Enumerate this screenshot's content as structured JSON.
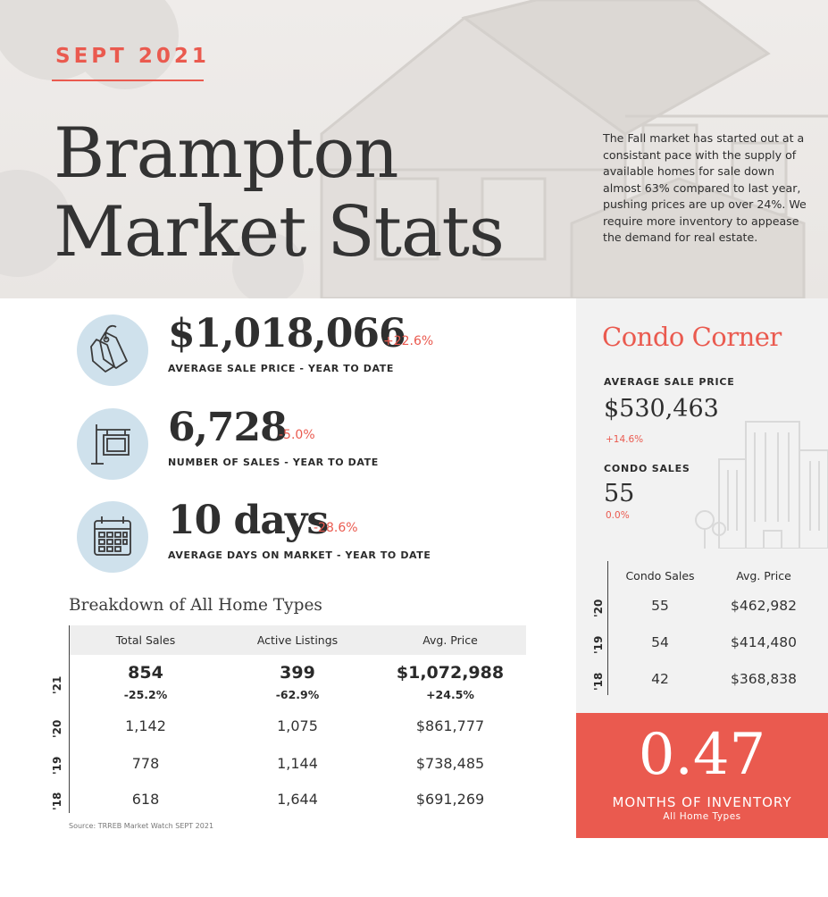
{
  "header": {
    "month": "SEPT 2021",
    "title_line1": "Brampton",
    "title_line2": "Market Stats",
    "description": "The Fall market has started out at a consistant pace with the supply of available homes for sale down almost 63% compared to last year, pushing prices are up over 24%.  We require more inventory to appease the demand for real estate."
  },
  "stats": [
    {
      "icon": "price-tag-icon",
      "value": "$1,018,066",
      "change": "+22.6%",
      "label": "AVERAGE SALE PRICE - YEAR TO DATE"
    },
    {
      "icon": "sale-sign-icon",
      "value": "6,728",
      "change": "-5.0%",
      "label": "NUMBER OF SALES - YEAR TO DATE"
    },
    {
      "icon": "calendar-icon",
      "value": "10 days",
      "change": "-28.6%",
      "label": "AVERAGE DAYS ON MARKET - YEAR TO DATE"
    }
  ],
  "breakdown": {
    "title": "Breakdown of All Home Types",
    "columns": [
      "Total Sales",
      "Active Listings",
      "Avg. Price"
    ],
    "rows": [
      {
        "year": "'21",
        "values": [
          "854",
          "399",
          "$1,072,988"
        ],
        "changes": [
          "-25.2%",
          "-62.9%",
          "+24.5%"
        ]
      },
      {
        "year": "'20",
        "values": [
          "1,142",
          "1,075",
          "$861,777"
        ]
      },
      {
        "year": "'19",
        "values": [
          "778",
          "1,144",
          "$738,485"
        ]
      },
      {
        "year": "'18",
        "values": [
          "618",
          "1,644",
          "$691,269"
        ]
      }
    ],
    "source": "Source: TRREB Market Watch SEPT 2021"
  },
  "condo": {
    "title": "Condo Corner",
    "avg_price_label": "AVERAGE SALE PRICE",
    "avg_price": "$530,463",
    "avg_price_change": "+14.6%",
    "sales_label": "CONDO SALES",
    "sales": "55",
    "sales_change": "0.0%",
    "columns": [
      "Condo Sales",
      "Avg. Price"
    ],
    "rows": [
      {
        "year": "'20",
        "sales": "55",
        "price": "$462,982"
      },
      {
        "year": "'19",
        "sales": "54",
        "price": "$414,480"
      },
      {
        "year": "'18",
        "sales": "42",
        "price": "$368,838"
      }
    ]
  },
  "inventory": {
    "value": "0.47",
    "label": "MONTHS OF INVENTORY",
    "sublabel": "All Home Types"
  },
  "colors": {
    "accent": "#ea5a4f",
    "icon_circle": "#cfe1ec",
    "text": "#2f2f2f"
  }
}
